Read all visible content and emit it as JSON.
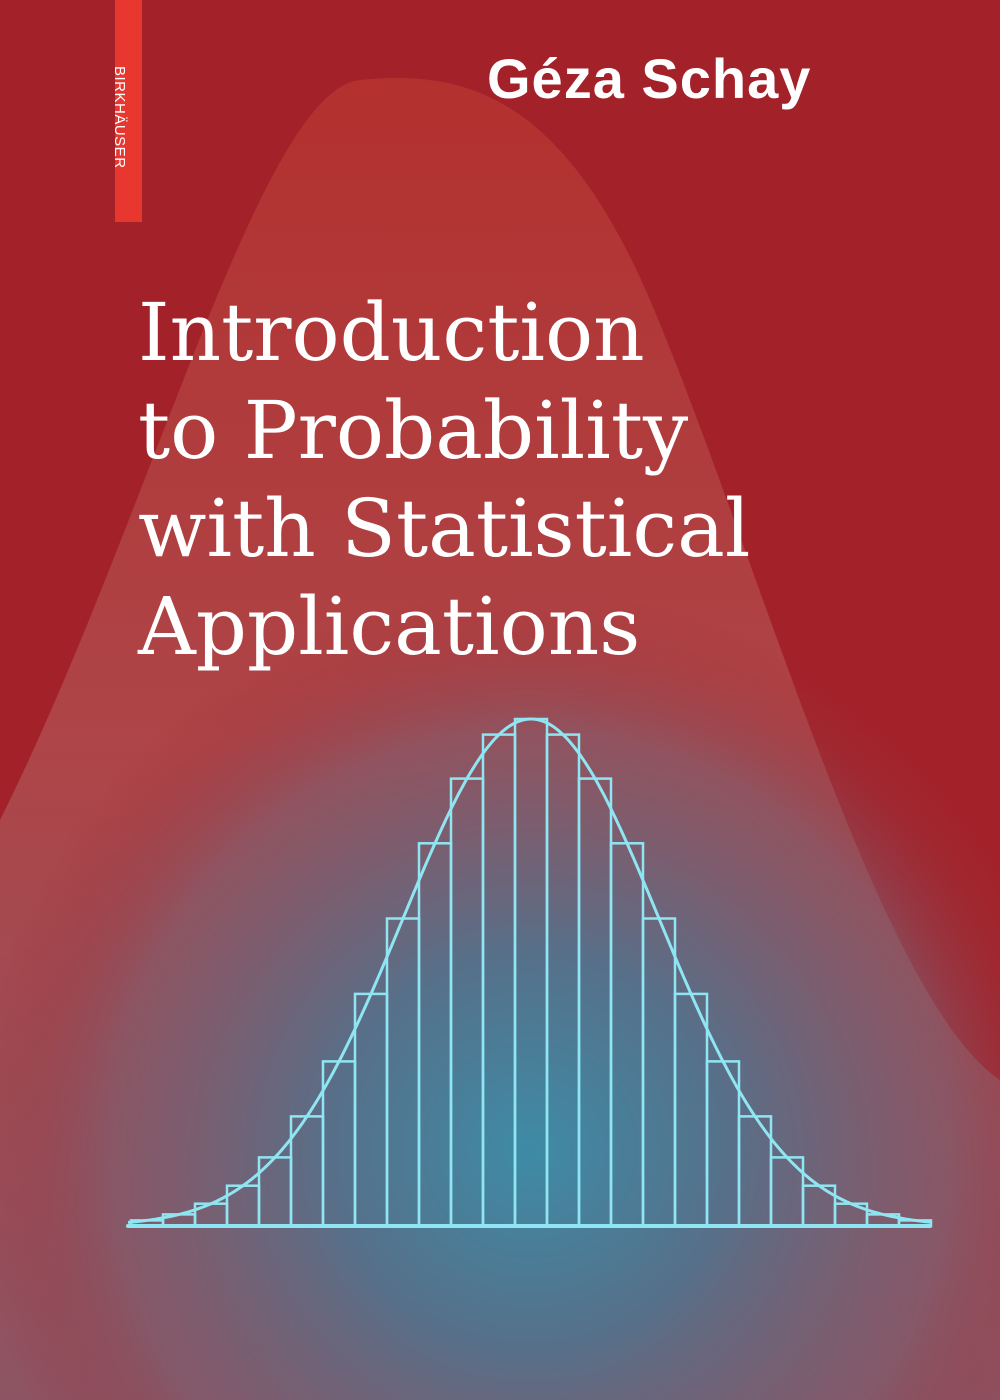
{
  "cover": {
    "publisher": "BIRKHÄUSER",
    "author": "Géza Schay",
    "title_lines": [
      "Introduction",
      "to Probability",
      "with Statistical",
      "Applications"
    ],
    "colors": {
      "background": "#a3222a",
      "publisher_strip": "#e8372e",
      "text": "#ffffff",
      "illustration_line": "#8fe6f2",
      "glow_center": "#3e8ba6"
    }
  },
  "illustration": {
    "type": "normal-curve-with-histogram",
    "bars": 25,
    "bin_width_sd": 0.25
  }
}
